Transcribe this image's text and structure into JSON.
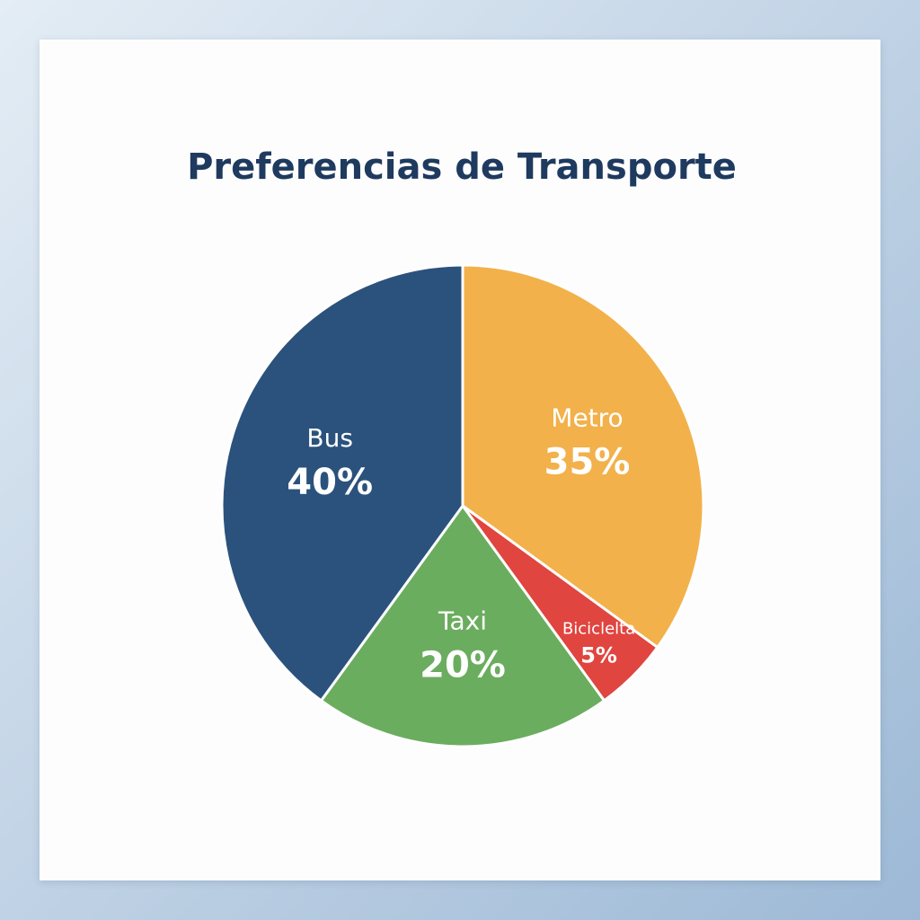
{
  "chart_data": {
    "type": "pie",
    "title": "Preferencias de Transporte",
    "categories": [
      "Metro",
      "Biciclelta",
      "Taxi",
      "Bus"
    ],
    "values": [
      35,
      5,
      20,
      40
    ],
    "value_labels": [
      "35%",
      "5%",
      "20%",
      "40%"
    ],
    "colors": [
      "#f2b14a",
      "#e0453f",
      "#6aad5e",
      "#2b527c"
    ]
  }
}
